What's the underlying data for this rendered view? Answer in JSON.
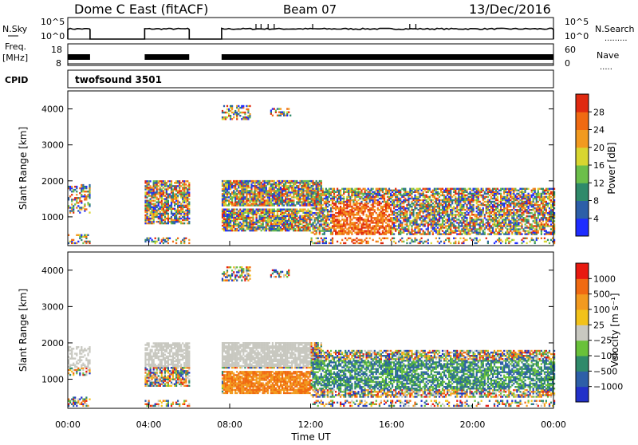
{
  "title": {
    "site": "Dome C East (fitACF)",
    "beam": "Beam 07",
    "date": "13/Dec/2016"
  },
  "params": {
    "nsky_label": "N.Sky",
    "nsky_ticks": [
      "10^5",
      "10^0"
    ],
    "nsearch_label": "N.Search",
    "nsearch_ticks": [
      "10^5",
      "10^0"
    ],
    "freq_label": "Freq.",
    "freq_unit": "[MHz]",
    "freq_ticks": [
      "18",
      "8"
    ],
    "nave_label": "Nave",
    "nave_ticks": [
      "60",
      "0"
    ],
    "cpid_label": "CPID",
    "cpid_value": "twofsound 3501"
  },
  "chart_data": [
    {
      "type": "heatmap",
      "name": "power",
      "ylabel": "Slant Range [km]",
      "yticks": [
        1000,
        2000,
        3000,
        4000
      ],
      "ylim": [
        200,
        4500
      ],
      "xlim": [
        0,
        24
      ],
      "colorbar": {
        "label": "Power [dB]",
        "ticks": [
          "28",
          "24",
          "20",
          "16",
          "12",
          "8",
          "4"
        ],
        "colors": [
          "#1e2cff",
          "#2d5fa8",
          "#2f8a6a",
          "#6cbf4a",
          "#d8d630",
          "#f29a1f",
          "#f06a12",
          "#e02a10"
        ]
      },
      "coverage_hours": [
        [
          0.0,
          1.1
        ],
        [
          3.8,
          6.0
        ],
        [
          7.6,
          24.0
        ]
      ]
    },
    {
      "type": "heatmap",
      "name": "velocity",
      "ylabel": "Slant Range [km]",
      "yticks": [
        1000,
        2000,
        3000,
        4000
      ],
      "ylim": [
        200,
        4500
      ],
      "xlim": [
        0,
        24
      ],
      "xticks": [
        "00:00",
        "04:00",
        "08:00",
        "12:00",
        "16:00",
        "20:00",
        "00:00"
      ],
      "xlabel": "Time UT",
      "colorbar": {
        "label": "Velocity [m s⁻¹]",
        "ticks": [
          "1000",
          "500",
          "100",
          "25",
          "−25",
          "−100",
          "−500",
          "−1000"
        ],
        "colors": [
          "#2231c9",
          "#2d5fa8",
          "#2f8a6a",
          "#69c13a",
          "#c8c8c0",
          "#f2c21a",
          "#f29a1f",
          "#f06a12",
          "#e81a10"
        ]
      },
      "coverage_hours": [
        [
          0.0,
          1.1
        ],
        [
          3.8,
          6.0
        ],
        [
          7.6,
          24.0
        ]
      ]
    }
  ]
}
